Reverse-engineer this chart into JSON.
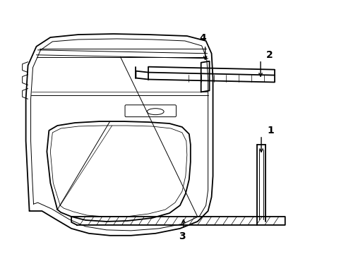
{
  "background_color": "#ffffff",
  "line_color": "#000000",
  "lw_main": 1.3,
  "lw_thin": 0.7,
  "lw_detail": 0.5,
  "label_fontsize": 10,
  "figsize": [
    4.9,
    3.6
  ],
  "dpi": 100
}
